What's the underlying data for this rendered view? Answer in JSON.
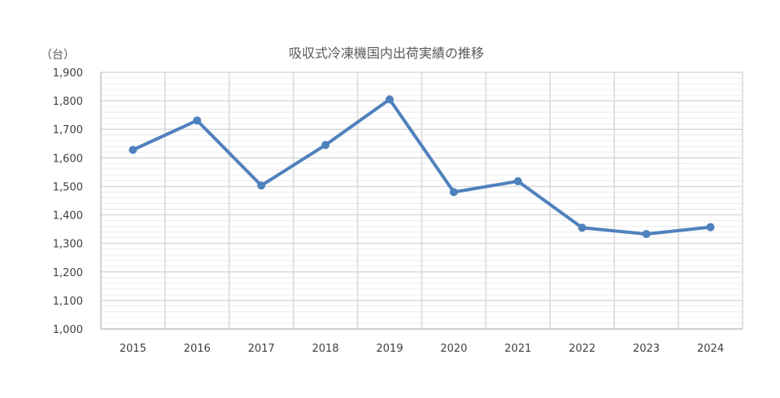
{
  "chart_data": {
    "type": "line",
    "title": "吸収式冷凍機国内出荷実績の推移",
    "unit_label": "（台）",
    "xlabel": "",
    "ylabel": "",
    "categories": [
      "2015",
      "2016",
      "2017",
      "2018",
      "2019",
      "2020",
      "2021",
      "2022",
      "2023",
      "2024"
    ],
    "series": [
      {
        "values": [
          1628,
          1731,
          1503,
          1645,
          1805,
          1480,
          1518,
          1355,
          1333,
          1357
        ]
      }
    ],
    "ylim": [
      1000,
      1900
    ],
    "y_tick_labels": [
      "1,000",
      "1,100",
      "1,200",
      "1,300",
      "1,400",
      "1,500",
      "1,600",
      "1,700",
      "1,800",
      "1,900"
    ],
    "y_major_step": 100,
    "y_minor_step": 20,
    "grid": true,
    "legend": "none",
    "colors": {
      "line": "#4f81bd",
      "grid_major": "#d9d9d9",
      "grid_minor": "#ececec",
      "axis": "#bfbfbf"
    }
  }
}
